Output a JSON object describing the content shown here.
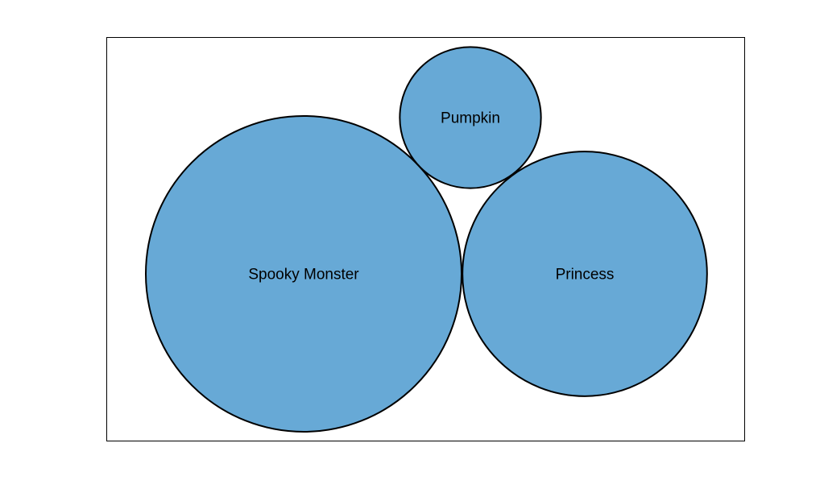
{
  "chart_data": {
    "type": "packed-bubble",
    "title": "",
    "xlabel": "",
    "ylabel": "",
    "grid": false,
    "legend": "none",
    "fill_color": "#67a9d6",
    "stroke_color": "#000000",
    "items": [
      {
        "label": "Spooky Monster",
        "value": 100
      },
      {
        "label": "Pumpkin",
        "value": 20
      },
      {
        "label": "Princess",
        "value": 60
      }
    ]
  }
}
